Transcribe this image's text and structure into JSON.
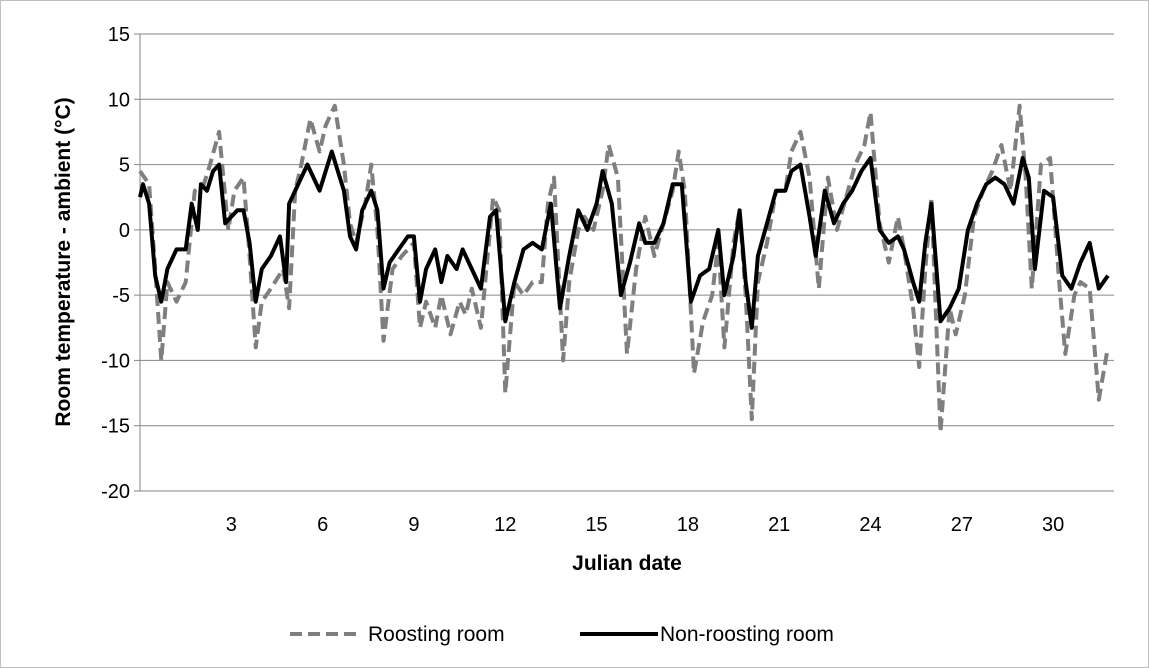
{
  "chart_data": {
    "type": "line",
    "title": "",
    "xlabel": "Julian date",
    "ylabel": "Room temperature - ambient (°C)",
    "xlim": [
      0,
      32
    ],
    "ylim": [
      -20,
      15
    ],
    "x_ticks": [
      3,
      6,
      9,
      12,
      15,
      18,
      21,
      24,
      27,
      30
    ],
    "y_ticks": [
      15,
      10,
      5,
      0,
      -5,
      -10,
      -15,
      -20
    ],
    "grid": "horizontal",
    "legend_position": "bottom",
    "series": [
      {
        "name": "Roosting room",
        "style": "dashed",
        "color": "#7f7f7f",
        "points": [
          [
            0.0,
            4.5
          ],
          [
            0.3,
            3.5
          ],
          [
            0.5,
            -3.0
          ],
          [
            0.7,
            -10.0
          ],
          [
            0.9,
            -4.0
          ],
          [
            1.2,
            -5.5
          ],
          [
            1.5,
            -4.0
          ],
          [
            1.8,
            3.0
          ],
          [
            2.1,
            3.5
          ],
          [
            2.3,
            5.0
          ],
          [
            2.6,
            7.5
          ],
          [
            2.9,
            0.0
          ],
          [
            3.1,
            3.0
          ],
          [
            3.4,
            4.0
          ],
          [
            3.6,
            -2.0
          ],
          [
            3.8,
            -9.0
          ],
          [
            4.0,
            -5.5
          ],
          [
            4.3,
            -4.5
          ],
          [
            4.7,
            -3.0
          ],
          [
            4.9,
            -6.0
          ],
          [
            5.1,
            3.0
          ],
          [
            5.3,
            5.0
          ],
          [
            5.6,
            8.5
          ],
          [
            5.9,
            6.0
          ],
          [
            6.1,
            8.0
          ],
          [
            6.4,
            9.5
          ],
          [
            6.7,
            5.0
          ],
          [
            6.9,
            0.5
          ],
          [
            7.1,
            -1.0
          ],
          [
            7.4,
            2.0
          ],
          [
            7.6,
            5.0
          ],
          [
            7.8,
            0.0
          ],
          [
            8.0,
            -8.5
          ],
          [
            8.3,
            -3.0
          ],
          [
            8.6,
            -2.0
          ],
          [
            9.0,
            -1.0
          ],
          [
            9.2,
            -7.5
          ],
          [
            9.4,
            -5.5
          ],
          [
            9.7,
            -7.5
          ],
          [
            9.9,
            -5.0
          ],
          [
            10.2,
            -8.0
          ],
          [
            10.5,
            -5.5
          ],
          [
            10.7,
            -6.5
          ],
          [
            10.9,
            -4.5
          ],
          [
            11.2,
            -7.5
          ],
          [
            11.6,
            2.5
          ],
          [
            11.8,
            1.5
          ],
          [
            12.0,
            -12.5
          ],
          [
            12.3,
            -4.0
          ],
          [
            12.6,
            -5.0
          ],
          [
            12.9,
            -4.0
          ],
          [
            13.2,
            -4.0
          ],
          [
            13.4,
            2.0
          ],
          [
            13.6,
            4.0
          ],
          [
            13.9,
            -10.0
          ],
          [
            14.1,
            -4.0
          ],
          [
            14.4,
            0.0
          ],
          [
            14.6,
            1.0
          ],
          [
            14.9,
            0.0
          ],
          [
            15.2,
            3.0
          ],
          [
            15.4,
            6.5
          ],
          [
            15.7,
            4.0
          ],
          [
            16.0,
            -9.5
          ],
          [
            16.3,
            -3.0
          ],
          [
            16.6,
            1.0
          ],
          [
            16.9,
            -2.0
          ],
          [
            17.2,
            0.5
          ],
          [
            17.5,
            3.0
          ],
          [
            17.7,
            6.0
          ],
          [
            17.9,
            3.0
          ],
          [
            18.2,
            -11.0
          ],
          [
            18.5,
            -7.0
          ],
          [
            18.8,
            -5.0
          ],
          [
            19.0,
            -1.0
          ],
          [
            19.2,
            -9.0
          ],
          [
            19.5,
            -1.0
          ],
          [
            19.7,
            1.5
          ],
          [
            19.9,
            -5.0
          ],
          [
            20.1,
            -14.5
          ],
          [
            20.3,
            -4.0
          ],
          [
            20.6,
            -1.0
          ],
          [
            20.9,
            3.0
          ],
          [
            21.2,
            3.0
          ],
          [
            21.4,
            6.0
          ],
          [
            21.7,
            7.5
          ],
          [
            22.0,
            4.0
          ],
          [
            22.3,
            -4.5
          ],
          [
            22.6,
            4.0
          ],
          [
            22.9,
            0.0
          ],
          [
            23.2,
            2.5
          ],
          [
            23.5,
            5.0
          ],
          [
            23.8,
            6.5
          ],
          [
            24.0,
            9.0
          ],
          [
            24.3,
            0.5
          ],
          [
            24.6,
            -2.5
          ],
          [
            24.9,
            1.0
          ],
          [
            25.1,
            -1.5
          ],
          [
            25.4,
            -6.0
          ],
          [
            25.6,
            -10.5
          ],
          [
            25.8,
            -3.0
          ],
          [
            26.0,
            2.5
          ],
          [
            26.3,
            -15.5
          ],
          [
            26.6,
            -6.0
          ],
          [
            26.8,
            -8.0
          ],
          [
            27.1,
            -5.0
          ],
          [
            27.4,
            1.0
          ],
          [
            27.7,
            3.0
          ],
          [
            28.0,
            4.5
          ],
          [
            28.3,
            6.5
          ],
          [
            28.6,
            3.0
          ],
          [
            28.9,
            9.5
          ],
          [
            29.1,
            4.0
          ],
          [
            29.3,
            -4.5
          ],
          [
            29.6,
            5.0
          ],
          [
            29.9,
            5.5
          ],
          [
            30.2,
            -4.0
          ],
          [
            30.4,
            -9.5
          ],
          [
            30.7,
            -5.0
          ],
          [
            30.9,
            -4.0
          ],
          [
            31.2,
            -4.5
          ],
          [
            31.5,
            -13.0
          ],
          [
            31.8,
            -9.0
          ]
        ]
      },
      {
        "name": "Non-roosting room",
        "style": "solid",
        "color": "#000000",
        "points": [
          [
            0.0,
            2.5
          ],
          [
            0.1,
            3.5
          ],
          [
            0.3,
            2.0
          ],
          [
            0.5,
            -3.5
          ],
          [
            0.7,
            -5.5
          ],
          [
            0.9,
            -3.0
          ],
          [
            1.2,
            -1.5
          ],
          [
            1.5,
            -1.5
          ],
          [
            1.7,
            2.0
          ],
          [
            1.9,
            0.0
          ],
          [
            2.0,
            3.5
          ],
          [
            2.2,
            3.0
          ],
          [
            2.4,
            4.5
          ],
          [
            2.6,
            5.0
          ],
          [
            2.8,
            0.5
          ],
          [
            3.0,
            1.0
          ],
          [
            3.2,
            1.5
          ],
          [
            3.4,
            1.5
          ],
          [
            3.6,
            -1.0
          ],
          [
            3.8,
            -5.5
          ],
          [
            4.0,
            -3.0
          ],
          [
            4.3,
            -2.0
          ],
          [
            4.6,
            -0.5
          ],
          [
            4.8,
            -4.0
          ],
          [
            4.9,
            2.0
          ],
          [
            5.1,
            3.0
          ],
          [
            5.3,
            4.0
          ],
          [
            5.5,
            5.0
          ],
          [
            5.7,
            4.0
          ],
          [
            5.9,
            3.0
          ],
          [
            6.1,
            4.5
          ],
          [
            6.3,
            6.0
          ],
          [
            6.5,
            4.5
          ],
          [
            6.7,
            3.0
          ],
          [
            6.9,
            -0.5
          ],
          [
            7.1,
            -1.5
          ],
          [
            7.3,
            1.5
          ],
          [
            7.6,
            3.0
          ],
          [
            7.8,
            1.5
          ],
          [
            8.0,
            -4.5
          ],
          [
            8.2,
            -2.5
          ],
          [
            8.5,
            -1.5
          ],
          [
            8.8,
            -0.5
          ],
          [
            9.0,
            -0.5
          ],
          [
            9.2,
            -5.5
          ],
          [
            9.4,
            -3.0
          ],
          [
            9.7,
            -1.5
          ],
          [
            9.9,
            -4.0
          ],
          [
            10.1,
            -2.0
          ],
          [
            10.4,
            -3.0
          ],
          [
            10.6,
            -1.5
          ],
          [
            10.9,
            -3.0
          ],
          [
            11.2,
            -4.5
          ],
          [
            11.5,
            1.0
          ],
          [
            11.7,
            1.5
          ],
          [
            12.0,
            -7.0
          ],
          [
            12.3,
            -4.0
          ],
          [
            12.6,
            -1.5
          ],
          [
            12.9,
            -1.0
          ],
          [
            13.2,
            -1.5
          ],
          [
            13.5,
            2.0
          ],
          [
            13.8,
            -6.0
          ],
          [
            14.1,
            -2.0
          ],
          [
            14.4,
            1.5
          ],
          [
            14.7,
            0.0
          ],
          [
            15.0,
            2.0
          ],
          [
            15.2,
            4.5
          ],
          [
            15.5,
            2.0
          ],
          [
            15.8,
            -5.0
          ],
          [
            16.1,
            -2.5
          ],
          [
            16.4,
            0.5
          ],
          [
            16.6,
            -1.0
          ],
          [
            16.9,
            -1.0
          ],
          [
            17.2,
            0.5
          ],
          [
            17.5,
            3.5
          ],
          [
            17.8,
            3.5
          ],
          [
            18.1,
            -5.5
          ],
          [
            18.4,
            -3.5
          ],
          [
            18.7,
            -3.0
          ],
          [
            19.0,
            0.0
          ],
          [
            19.2,
            -5.0
          ],
          [
            19.5,
            -2.0
          ],
          [
            19.7,
            1.5
          ],
          [
            19.9,
            -4.0
          ],
          [
            20.1,
            -7.5
          ],
          [
            20.3,
            -2.0
          ],
          [
            20.6,
            0.5
          ],
          [
            20.9,
            3.0
          ],
          [
            21.2,
            3.0
          ],
          [
            21.4,
            4.5
          ],
          [
            21.7,
            5.0
          ],
          [
            22.0,
            1.0
          ],
          [
            22.2,
            -2.0
          ],
          [
            22.5,
            3.0
          ],
          [
            22.8,
            0.5
          ],
          [
            23.1,
            2.0
          ],
          [
            23.4,
            3.0
          ],
          [
            23.7,
            4.5
          ],
          [
            24.0,
            5.5
          ],
          [
            24.3,
            0.0
          ],
          [
            24.6,
            -1.0
          ],
          [
            24.9,
            -0.5
          ],
          [
            25.1,
            -1.5
          ],
          [
            25.4,
            -4.0
          ],
          [
            25.6,
            -5.5
          ],
          [
            25.8,
            -1.0
          ],
          [
            26.0,
            2.0
          ],
          [
            26.3,
            -7.0
          ],
          [
            26.6,
            -6.0
          ],
          [
            26.9,
            -4.5
          ],
          [
            27.2,
            0.0
          ],
          [
            27.5,
            2.0
          ],
          [
            27.8,
            3.5
          ],
          [
            28.1,
            4.0
          ],
          [
            28.4,
            3.5
          ],
          [
            28.7,
            2.0
          ],
          [
            29.0,
            5.5
          ],
          [
            29.2,
            4.0
          ],
          [
            29.4,
            -3.0
          ],
          [
            29.7,
            3.0
          ],
          [
            30.0,
            2.5
          ],
          [
            30.3,
            -3.5
          ],
          [
            30.6,
            -4.5
          ],
          [
            30.9,
            -2.5
          ],
          [
            31.2,
            -1.0
          ],
          [
            31.5,
            -4.5
          ],
          [
            31.8,
            -3.5
          ]
        ]
      }
    ]
  }
}
